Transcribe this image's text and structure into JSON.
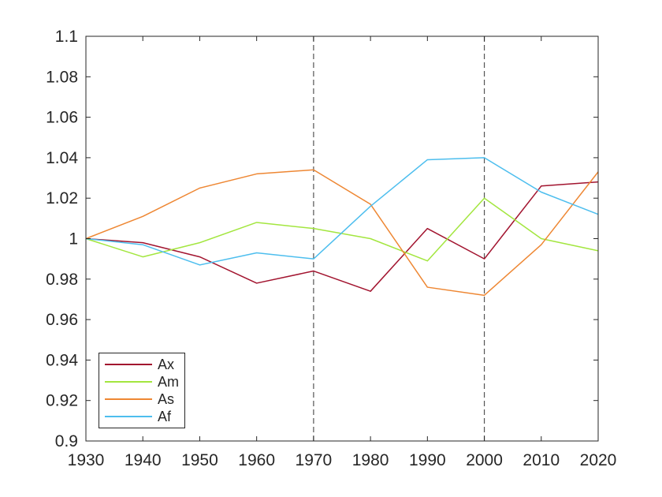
{
  "figure": {
    "background": "#ffffff"
  },
  "colors": {
    "axis": "#262626",
    "text": "#262626",
    "reference": "#545454"
  },
  "chart_data": {
    "type": "line",
    "x": [
      1930,
      1940,
      1950,
      1960,
      1970,
      1980,
      1990,
      2000,
      2010,
      2020
    ],
    "series": [
      {
        "name": "Ax",
        "color": "#A2142F",
        "values": [
          1.0,
          0.998,
          0.991,
          0.978,
          0.984,
          0.974,
          1.005,
          0.99,
          1.026,
          1.028
        ]
      },
      {
        "name": "Am",
        "color": "#A3E63F",
        "values": [
          1.0,
          0.991,
          0.998,
          1.008,
          1.005,
          1.0,
          0.989,
          1.02,
          1.0,
          0.994
        ]
      },
      {
        "name": "As",
        "color": "#EE8733",
        "values": [
          1.0,
          1.011,
          1.025,
          1.032,
          1.034,
          1.017,
          0.976,
          0.972,
          0.997,
          1.033
        ]
      },
      {
        "name": "Af",
        "color": "#4DBEEE",
        "values": [
          1.0,
          0.997,
          0.987,
          0.993,
          0.99,
          1.016,
          1.039,
          1.04,
          1.023,
          1.012
        ]
      }
    ],
    "xlim": [
      1930,
      2020
    ],
    "ylim": [
      0.9,
      1.1
    ],
    "xticks": [
      1930,
      1940,
      1950,
      1960,
      1970,
      1980,
      1990,
      2000,
      2010,
      2020
    ],
    "yticks": [
      0.9,
      0.92,
      0.94,
      0.96,
      0.98,
      1.0,
      1.02,
      1.04,
      1.06,
      1.08,
      1.1
    ],
    "xtick_labels": [
      "1930",
      "1940",
      "1950",
      "1960",
      "1970",
      "1980",
      "1990",
      "2000",
      "2010",
      "2020"
    ],
    "ytick_labels": [
      "0.9",
      "0.92",
      "0.94",
      "0.96",
      "0.98",
      "1",
      "1.02",
      "1.04",
      "1.06",
      "1.08",
      "1.1"
    ],
    "reference_lines": [
      {
        "x": 1970,
        "style": "dashed"
      },
      {
        "x": 2000,
        "style": "dashed"
      }
    ],
    "grid": false,
    "box": true,
    "legend": {
      "position": "southwest",
      "items": [
        "Ax",
        "Am",
        "As",
        "Af"
      ]
    }
  }
}
